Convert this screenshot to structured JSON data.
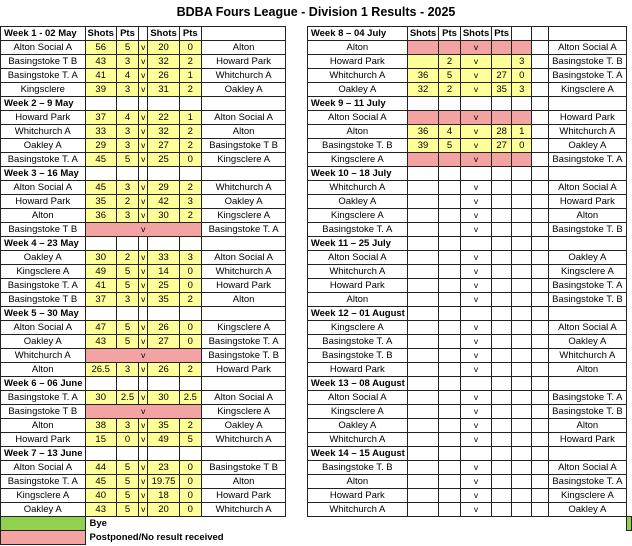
{
  "title": "BDBA Fours League - Division 1 Results - 2025",
  "headers": {
    "shots": "Shots",
    "pts": "Pts"
  },
  "vs": "v",
  "colors": {
    "result": "#ffff99",
    "postponed": "#f4a3a3",
    "bye": "#92d050"
  },
  "left_weeks": [
    {
      "label": "Week 1 - 02 May",
      "show_headers": true,
      "rows": [
        {
          "home": "Alton Social A",
          "hs": "56",
          "hp": "5",
          "as": "20",
          "ap": "0",
          "away": "Alton",
          "status": "result"
        },
        {
          "home": "Basingstoke T B",
          "hs": "43",
          "hp": "3",
          "as": "32",
          "ap": "2",
          "away": "Howard Park",
          "status": "result"
        },
        {
          "home": "Basingstoke T. A",
          "hs": "41",
          "hp": "4",
          "as": "26",
          "ap": "1",
          "away": "Whitchurch A",
          "status": "result"
        },
        {
          "home": "Kingsclere",
          "hs": "39",
          "hp": "3",
          "as": "31",
          "ap": "2",
          "away": "Oakley A",
          "status": "result"
        }
      ]
    },
    {
      "label": "Week 2 – 9 May",
      "rows": [
        {
          "home": "Howard Park",
          "hs": "37",
          "hp": "4",
          "as": "22",
          "ap": "1",
          "away": "Alton Social A",
          "status": "result"
        },
        {
          "home": "Whitchurch A",
          "hs": "33",
          "hp": "3",
          "as": "32",
          "ap": "2",
          "away": "Alton",
          "status": "result"
        },
        {
          "home": "Oakley A",
          "hs": "29",
          "hp": "3",
          "as": "27",
          "ap": "2",
          "away": "Basingstoke T B",
          "status": "result"
        },
        {
          "home": "Basingstoke T. A",
          "hs": "45",
          "hp": "5",
          "as": "25",
          "ap": "0",
          "away": "Kingsclere A",
          "status": "result"
        }
      ]
    },
    {
      "label": "Week 3 – 16 May",
      "rows": [
        {
          "home": "Alton Social A",
          "hs": "45",
          "hp": "3",
          "as": "29",
          "ap": "2",
          "away": "Whitchurch A",
          "status": "result"
        },
        {
          "home": "Howard Park",
          "hs": "35",
          "hp": "2",
          "as": "42",
          "ap": "3",
          "away": "Oakley A",
          "status": "result"
        },
        {
          "home": "Alton",
          "hs": "36",
          "hp": "3",
          "as": "30",
          "ap": "2",
          "away": "Kingsclere A",
          "status": "result"
        },
        {
          "home": "Basingstoke T B",
          "hs": "",
          "hp": "",
          "as": "",
          "ap": "",
          "away": "Basingstoke T. A",
          "status": "postponed"
        }
      ]
    },
    {
      "label": "Week 4 – 23 May",
      "rows": [
        {
          "home": "Oakley A",
          "hs": "30",
          "hp": "2",
          "as": "33",
          "ap": "3",
          "away": "Alton Social A",
          "status": "result"
        },
        {
          "home": "Kingsclere A",
          "hs": "49",
          "hp": "5",
          "as": "14",
          "ap": "0",
          "away": "Whitchurch A",
          "status": "result"
        },
        {
          "home": "Basingstoke T. A",
          "hs": "41",
          "hp": "5",
          "as": "25",
          "ap": "0",
          "away": "Howard Park",
          "status": "result"
        },
        {
          "home": "Basingstoke T B",
          "hs": "37",
          "hp": "3",
          "as": "35",
          "ap": "2",
          "away": "Alton",
          "status": "result"
        }
      ]
    },
    {
      "label": "Week 5 – 30 May",
      "rows": [
        {
          "home": "Alton Social A",
          "hs": "47",
          "hp": "5",
          "as": "26",
          "ap": "0",
          "away": "Kingsclere A",
          "status": "result"
        },
        {
          "home": "Oakley A",
          "hs": "43",
          "hp": "5",
          "as": "27",
          "ap": "0",
          "away": "Basingstoke T. A",
          "status": "result"
        },
        {
          "home": "Whitchurch A",
          "hs": "",
          "hp": "",
          "as": "",
          "ap": "",
          "away": "Basingstoke T. B",
          "status": "postponed"
        },
        {
          "home": "Alton",
          "hs": "26.5",
          "hp": "3",
          "as": "26",
          "ap": "2",
          "away": "Howard Park",
          "status": "result"
        }
      ]
    },
    {
      "label": "Week 6 – 06 June",
      "rows": [
        {
          "home": "Basingstoke T. A",
          "hs": "30",
          "hp": "2.5",
          "as": "30",
          "ap": "2.5",
          "away": "Alton Social A",
          "status": "result"
        },
        {
          "home": "Basingstoke T B",
          "hs": "",
          "hp": "",
          "as": "",
          "ap": "",
          "away": "Kingsclere A",
          "status": "postponed"
        },
        {
          "home": "Alton",
          "hs": "38",
          "hp": "3",
          "as": "35",
          "ap": "2",
          "away": "Oakley A",
          "status": "result"
        },
        {
          "home": "Howard Park",
          "hs": "15",
          "hp": "0",
          "as": "49",
          "ap": "5",
          "away": "Whitchurch A",
          "status": "result"
        }
      ]
    },
    {
      "label": "Week 7 – 13 June",
      "rows": [
        {
          "home": "Alton Social A",
          "hs": "44",
          "hp": "5",
          "as": "23",
          "ap": "0",
          "away": "Basingstoke T B",
          "status": "result"
        },
        {
          "home": "Basingstoke T. A",
          "hs": "45",
          "hp": "5",
          "as": "19.75",
          "ap": "0",
          "away": "Alton",
          "status": "result"
        },
        {
          "home": "Kingsclere A",
          "hs": "40",
          "hp": "5",
          "as": "18",
          "ap": "0",
          "away": "Howard Park",
          "status": "result"
        },
        {
          "home": "Oakley A",
          "hs": "43",
          "hp": "5",
          "as": "20",
          "ap": "0",
          "away": "Whitchurch A",
          "status": "result"
        }
      ]
    }
  ],
  "right_weeks": [
    {
      "label": "Week 8 – 04 July",
      "show_headers": true,
      "rows": [
        {
          "home": "Alton",
          "hs": "",
          "hp": "",
          "as": "",
          "ap": "",
          "away": "",
          "far": "Alton Social A",
          "status": "postponed"
        },
        {
          "home": "Howard Park",
          "hs": "",
          "hp": "2",
          "as": "",
          "ap": "3",
          "away": "",
          "far": "Basingstoke T. B",
          "status": "result"
        },
        {
          "home": "Whitchurch A",
          "hs": "36",
          "hp": "5",
          "as": "27",
          "ap": "0",
          "away": "",
          "far": "Basingstoke T. A",
          "status": "result"
        },
        {
          "home": "Oakley A",
          "hs": "32",
          "hp": "2",
          "as": "35",
          "ap": "3",
          "away": "",
          "far": "Kingsclere A",
          "status": "result"
        }
      ]
    },
    {
      "label": "Week 9 – 11 July",
      "rows": [
        {
          "home": "Alton Social A",
          "hs": "",
          "hp": "",
          "as": "",
          "ap": "",
          "away": "",
          "far": "Howard Park",
          "status": "postponed"
        },
        {
          "home": "Alton",
          "hs": "36",
          "hp": "4",
          "as": "28",
          "ap": "1",
          "away": "",
          "far": "Whitchurch A",
          "status": "result"
        },
        {
          "home": "Basingstoke T. B",
          "hs": "39",
          "hp": "5",
          "as": "27",
          "ap": "0",
          "away": "",
          "far": "Oakley A",
          "status": "result"
        },
        {
          "home": "Kingsclere A",
          "hs": "",
          "hp": "",
          "as": "",
          "ap": "",
          "away": "",
          "far": "Basingstoke T. A",
          "status": "postponed"
        }
      ]
    },
    {
      "label": "Week 10 – 18 July",
      "rows": [
        {
          "home": "Whitchurch A",
          "hs": "",
          "hp": "",
          "as": "",
          "ap": "",
          "away": "",
          "far": "Alton Social A",
          "status": "empty"
        },
        {
          "home": "Oakley A",
          "hs": "",
          "hp": "",
          "as": "",
          "ap": "",
          "away": "",
          "far": "Howard Park",
          "status": "empty"
        },
        {
          "home": "Kingsclere A",
          "hs": "",
          "hp": "",
          "as": "",
          "ap": "",
          "away": "",
          "far": "Alton",
          "status": "empty"
        },
        {
          "home": "Basingstoke T. A",
          "hs": "",
          "hp": "",
          "as": "",
          "ap": "",
          "away": "",
          "far": "Basingstoke T. B",
          "status": "empty"
        }
      ]
    },
    {
      "label": "Week 11 – 25 July",
      "rows": [
        {
          "home": "Alton Social A",
          "hs": "",
          "hp": "",
          "as": "",
          "ap": "",
          "away": "",
          "far": "Oakley A",
          "status": "empty"
        },
        {
          "home": "Whitchurch A",
          "hs": "",
          "hp": "",
          "as": "",
          "ap": "",
          "away": "",
          "far": "Kingsclere A",
          "status": "empty"
        },
        {
          "home": "Howard Park",
          "hs": "",
          "hp": "",
          "as": "",
          "ap": "",
          "away": "",
          "far": "Basingstoke T. A",
          "status": "empty"
        },
        {
          "home": "Alton",
          "hs": "",
          "hp": "",
          "as": "",
          "ap": "",
          "away": "",
          "far": "Basingstoke T. B",
          "status": "empty"
        }
      ]
    },
    {
      "label": "Week 12 – 01 August",
      "rows": [
        {
          "home": "Kingsclere A",
          "hs": "",
          "hp": "",
          "as": "",
          "ap": "",
          "away": "",
          "far": "Alton Social A",
          "status": "empty"
        },
        {
          "home": "Basingstoke T. A",
          "hs": "",
          "hp": "",
          "as": "",
          "ap": "",
          "away": "",
          "far": "Oakley A",
          "status": "empty"
        },
        {
          "home": "Basingstoke T. B",
          "hs": "",
          "hp": "",
          "as": "",
          "ap": "",
          "away": "",
          "far": "Whitchurch A",
          "status": "empty"
        },
        {
          "home": "Howard Park",
          "hs": "",
          "hp": "",
          "as": "",
          "ap": "",
          "away": "",
          "far": "Alton",
          "status": "empty"
        }
      ]
    },
    {
      "label": "Week 13 – 08 August",
      "rows": [
        {
          "home": "Alton Social A",
          "hs": "",
          "hp": "",
          "as": "",
          "ap": "",
          "away": "",
          "far": "Basingstoke T. A",
          "status": "empty"
        },
        {
          "home": "Kingsclere A",
          "hs": "",
          "hp": "",
          "as": "",
          "ap": "",
          "away": "",
          "far": "Basingstoke T. B",
          "status": "empty"
        },
        {
          "home": "Oakley A",
          "hs": "",
          "hp": "",
          "as": "",
          "ap": "",
          "away": "",
          "far": "Alton",
          "status": "empty"
        },
        {
          "home": "Whitchurch A",
          "hs": "",
          "hp": "",
          "as": "",
          "ap": "",
          "away": "",
          "far": "Howard Park",
          "status": "empty"
        }
      ]
    },
    {
      "label": "Week 14 – 15 August",
      "rows": [
        {
          "home": "Basingstoke T. B",
          "hs": "",
          "hp": "",
          "as": "",
          "ap": "",
          "away": "",
          "far": "Alton Social A",
          "status": "empty"
        },
        {
          "home": "Alton",
          "hs": "",
          "hp": "",
          "as": "",
          "ap": "",
          "away": "",
          "far": "Basingstoke T. A",
          "status": "empty"
        },
        {
          "home": "Howard Park",
          "hs": "",
          "hp": "",
          "as": "",
          "ap": "",
          "away": "",
          "far": "Kingsclere A",
          "status": "empty"
        },
        {
          "home": "Whitchurch A",
          "hs": "",
          "hp": "",
          "as": "",
          "ap": "",
          "away": "",
          "far": "Oakley A",
          "status": "empty"
        }
      ]
    }
  ],
  "legend": {
    "bye": "Bye",
    "postponed": "Postponed/No result received"
  }
}
